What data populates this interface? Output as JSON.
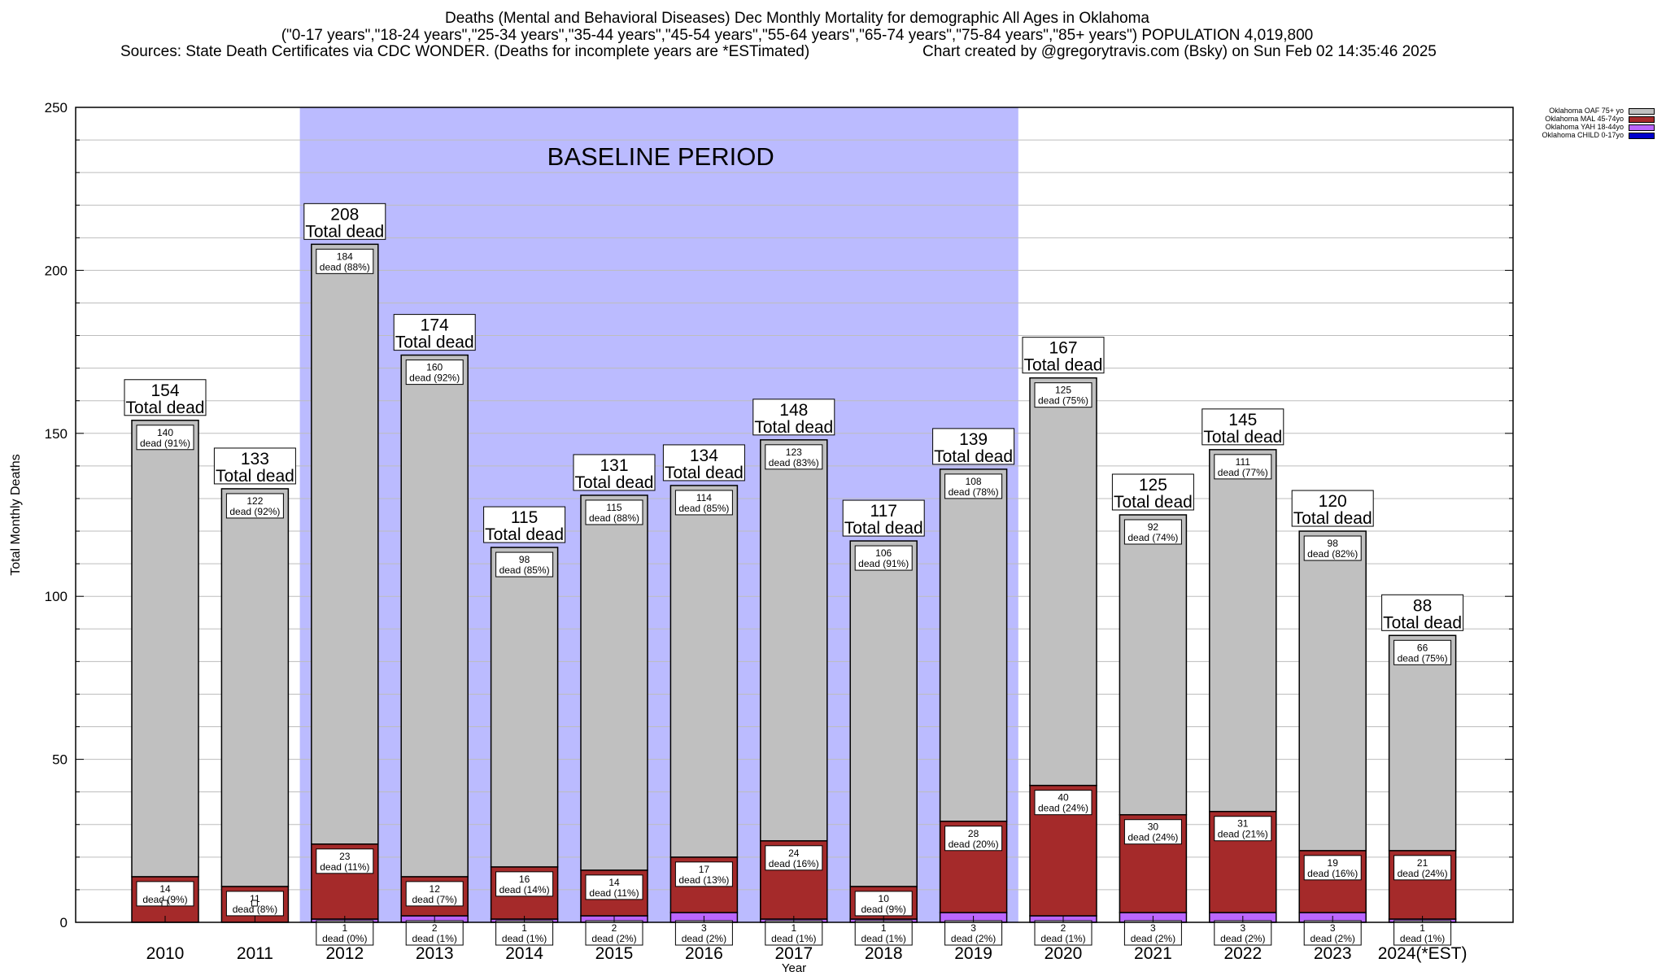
{
  "title": {
    "line1": "Deaths (Mental and Behavioral Diseases) Dec Monthly Mortality for demographic All Ages in Oklahoma",
    "line2": "(\"0-17 years\",\"18-24 years\",\"25-34 years\",\"35-44 years\",\"45-54 years\",\"55-64 years\",\"65-74 years\",\"75-84 years\",\"85+ years\") POPULATION 4,019,800",
    "sources": "Sources: State Death Certificates via CDC WONDER. (Deaths for incomplete years are *ESTimated)",
    "credit": "Chart created by @gregorytravis.com (Bsky) on Sun Feb 02 14:35:46 2025"
  },
  "legend": [
    {
      "label": "Oklahoma OAF 75+ yo",
      "color": "#c0c0c0"
    },
    {
      "label": "Oklahoma MAL 45-74yo",
      "color": "#a52a2a"
    },
    {
      "label": "Oklahoma YAH 18-44yo",
      "color": "#bb66ff"
    },
    {
      "label": "Oklahoma CHILD 0-17yo",
      "color": "#0000cc"
    }
  ],
  "chart_data": {
    "type": "bar",
    "stacked": true,
    "xlabel": "Year",
    "ylabel": "Total Monthly Deaths",
    "ylim": [
      0,
      250
    ],
    "yticks": [
      0,
      50,
      100,
      150,
      200,
      250
    ],
    "grid": true,
    "legend_position": "top-right, outside plot",
    "baseline": {
      "label": "BASELINE PERIOD",
      "from": "2012",
      "to": "2019",
      "color": "#bbbbff"
    },
    "categories": [
      "2010",
      "2011",
      "2012",
      "2013",
      "2014",
      "2015",
      "2016",
      "2017",
      "2018",
      "2019",
      "2020",
      "2021",
      "2022",
      "2023",
      "2024(*EST)"
    ],
    "series": [
      {
        "name": "Oklahoma CHILD 0-17yo",
        "color": "#0000cc",
        "values": [
          0,
          0,
          0,
          0,
          0,
          0,
          0,
          0,
          0,
          0,
          0,
          0,
          0,
          0,
          0
        ]
      },
      {
        "name": "Oklahoma YAH 18-44yo",
        "color": "#bb66ff",
        "values": [
          0,
          0,
          1,
          2,
          1,
          2,
          3,
          1,
          1,
          3,
          2,
          3,
          3,
          3,
          1
        ],
        "labels": [
          "",
          "",
          "1\ndead (0%)",
          "2\ndead (1%)",
          "1\ndead (1%)",
          "2\ndead (2%)",
          "3\ndead (2%)",
          "1\ndead (1%)",
          "1\ndead (1%)",
          "3\ndead (2%)",
          "2\ndead (1%)",
          "3\ndead (2%)",
          "3\ndead (2%)",
          "3\ndead (2%)",
          "1\ndead (1%)"
        ]
      },
      {
        "name": "Oklahoma MAL 45-74yo",
        "color": "#a52a2a",
        "values": [
          14,
          11,
          23,
          12,
          16,
          14,
          17,
          24,
          10,
          28,
          40,
          30,
          31,
          19,
          21
        ],
        "labels": [
          "14\ndead (9%)",
          "11\ndead (8%)",
          "23\ndead (11%)",
          "12\ndead (7%)",
          "16\ndead (14%)",
          "14\ndead (11%)",
          "17\ndead (13%)",
          "24\ndead (16%)",
          "10\ndead (9%)",
          "28\ndead (20%)",
          "40\ndead (24%)",
          "30\ndead (24%)",
          "31\ndead (21%)",
          "19\ndead (16%)",
          "21\ndead (24%)"
        ]
      },
      {
        "name": "Oklahoma OAF 75+ yo",
        "color": "#c0c0c0",
        "values": [
          140,
          122,
          184,
          160,
          98,
          115,
          114,
          123,
          106,
          108,
          125,
          92,
          111,
          98,
          66
        ],
        "labels": [
          "140\ndead (91%)",
          "122\ndead (92%)",
          "184\ndead (88%)",
          "160\ndead (92%)",
          "98\ndead (85%)",
          "115\ndead (88%)",
          "114\ndead (85%)",
          "123\ndead (83%)",
          "106\ndead (91%)",
          "108\ndead (78%)",
          "125\ndead (75%)",
          "92\ndead (74%)",
          "111\ndead (77%)",
          "98\ndead (82%)",
          "66\ndead (75%)"
        ]
      }
    ],
    "totals": [
      154,
      133,
      208,
      174,
      115,
      131,
      134,
      148,
      117,
      139,
      167,
      125,
      145,
      120,
      88
    ],
    "total_label": "Total dead"
  }
}
